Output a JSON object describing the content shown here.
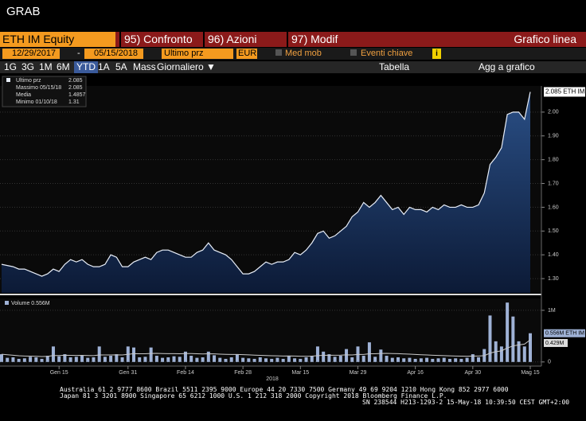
{
  "window_title": "GRAB",
  "header": {
    "security": "ETH IM Equity",
    "menus": [
      "95) Confronto",
      "96) Azioni",
      "97) Modif"
    ],
    "view": "Grafico linea"
  },
  "controls": {
    "start_date": "12/29/2017",
    "separator": "-",
    "end_date": "05/15/2018",
    "field": "Ultimo prz",
    "currency": "EUR",
    "moving_avg": "Med mob",
    "events": "Eventi chiave",
    "info": "i"
  },
  "periods": [
    "1G",
    "3G",
    "1M",
    "6M",
    "YTD",
    "1A",
    "5A",
    "Mass",
    "Giornaliero ▼"
  ],
  "tools": {
    "table": "Tabella",
    "add": "Agg a grafico"
  },
  "stats": [
    {
      "label": "Ultimo prz",
      "value": "2.085"
    },
    {
      "label": "Massimo 05/15/18",
      "value": "2.085"
    },
    {
      "label": "Media",
      "value": "1.4857"
    },
    {
      "label": "Minimo 01/10/18",
      "value": "1.31"
    }
  ],
  "chart_data": [
    {
      "type": "area",
      "categories": [
        null,
        null,
        null,
        null,
        null,
        null,
        null,
        null,
        null,
        null,
        "Gen 15",
        null,
        null,
        null,
        null,
        null,
        null,
        null,
        null,
        null,
        null,
        null,
        "Gen 31",
        null,
        null,
        null,
        null,
        null,
        null,
        null,
        null,
        null,
        "Feb 14",
        null,
        null,
        null,
        null,
        null,
        null,
        null,
        null,
        null,
        "Feb 28",
        null,
        null,
        null,
        null,
        null,
        null,
        null,
        null,
        null,
        "Mar 15",
        null,
        null,
        null,
        null,
        null,
        null,
        null,
        null,
        null,
        "Mar 29",
        null,
        null,
        null,
        null,
        null,
        null,
        null,
        null,
        null,
        "Apr 16",
        null,
        null,
        null,
        null,
        null,
        null,
        null,
        null,
        null,
        "Apr 30",
        null,
        null,
        null,
        null,
        null,
        null,
        null,
        null,
        null,
        "Mag 15"
      ],
      "series": [
        {
          "name": "Ultimo prz",
          "color": "#e8eef8",
          "values": [
            1.36,
            1.355,
            1.35,
            1.34,
            1.34,
            1.33,
            1.32,
            1.31,
            1.32,
            1.34,
            1.33,
            1.36,
            1.38,
            1.37,
            1.38,
            1.36,
            1.35,
            1.35,
            1.36,
            1.4,
            1.39,
            1.35,
            1.35,
            1.37,
            1.38,
            1.39,
            1.38,
            1.41,
            1.42,
            1.42,
            1.41,
            1.4,
            1.39,
            1.39,
            1.41,
            1.42,
            1.45,
            1.42,
            1.41,
            1.4,
            1.38,
            1.35,
            1.32,
            1.32,
            1.33,
            1.35,
            1.37,
            1.36,
            1.37,
            1.37,
            1.38,
            1.41,
            1.4,
            1.42,
            1.45,
            1.49,
            1.5,
            1.47,
            1.48,
            1.5,
            1.52,
            1.56,
            1.58,
            1.62,
            1.6,
            1.62,
            1.65,
            1.62,
            1.59,
            1.6,
            1.57,
            1.6,
            1.59,
            1.59,
            1.58,
            1.6,
            1.59,
            1.61,
            1.6,
            1.6,
            1.61,
            1.6,
            1.6,
            1.61,
            1.66,
            1.78,
            1.81,
            1.85,
            1.99,
            2.0,
            2.0,
            1.97,
            2.085
          ]
        }
      ],
      "last_tag": "2.085 ETH IM",
      "year_label": "2018",
      "ylim": [
        1.24,
        2.11
      ],
      "yticks": [
        {
          "value": 1.3,
          "label": "1.30"
        },
        {
          "value": 1.4,
          "label": "1.40"
        },
        {
          "value": 1.5,
          "label": "1.50"
        },
        {
          "value": 1.6,
          "label": "1.60"
        },
        {
          "value": 1.7,
          "label": "1.70"
        },
        {
          "value": 1.8,
          "label": "1.80"
        },
        {
          "value": 1.9,
          "label": "1.90"
        },
        {
          "value": 2.0,
          "label": "2.00"
        }
      ],
      "grid": true
    },
    {
      "type": "bar",
      "legend": "Volume 0.556M",
      "series": [
        {
          "name": "Volume",
          "color": "#9fb2d6",
          "values": [
            150000,
            80000,
            90000,
            60000,
            70000,
            100000,
            90000,
            60000,
            120000,
            300000,
            110000,
            150000,
            90000,
            100000,
            120000,
            80000,
            90000,
            300000,
            100000,
            120000,
            150000,
            90000,
            300000,
            280000,
            90000,
            100000,
            280000,
            120000,
            80000,
            90000,
            110000,
            100000,
            200000,
            120000,
            80000,
            90000,
            200000,
            130000,
            80000,
            60000,
            90000,
            150000,
            80000,
            70000,
            60000,
            90000,
            70000,
            60000,
            80000,
            60000,
            120000,
            70000,
            60000,
            90000,
            120000,
            300000,
            200000,
            150000,
            100000,
            120000,
            250000,
            90000,
            300000,
            120000,
            380000,
            100000,
            240000,
            120000,
            80000,
            90000,
            70000,
            80000,
            60000,
            70000,
            80000,
            60000,
            70000,
            80000,
            60000,
            70000,
            60000,
            80000,
            150000,
            90000,
            250000,
            900000,
            400000,
            300000,
            1150000,
            880000,
            400000,
            300000,
            556000
          ]
        },
        {
          "color": "#c8c8c8",
          "line": true,
          "values": [
            150000,
            140000,
            130000,
            120000,
            115000,
            112000,
            110000,
            105000,
            108000,
            125000,
            125000,
            130000,
            128000,
            127000,
            128000,
            125000,
            122000,
            135000,
            135000,
            135000,
            138000,
            136000,
            148000,
            160000,
            158000,
            158000,
            165000,
            166000,
            162000,
            160000,
            160000,
            158000,
            162000,
            162000,
            158000,
            155000,
            158000,
            157000,
            152000,
            148000,
            145000,
            146000,
            142000,
            138000,
            132000,
            128000,
            124000,
            120000,
            118000,
            115000,
            116000,
            114000,
            110000,
            110000,
            112000,
            122000,
            128000,
            130000,
            130000,
            132000,
            138000,
            136000,
            145000,
            146000,
            158000,
            158000,
            165000,
            166000,
            162000,
            160000,
            155000,
            152000,
            146000,
            140000,
            135000,
            130000,
            126000,
            122000,
            118000,
            115000,
            112000,
            110000,
            115000,
            115000,
            122000,
            170000,
            200000,
            215000,
            270000,
            310000,
            330000,
            345000,
            429000
          ]
        }
      ],
      "tags": [
        "0.556M ETH IM",
        "0.429M"
      ],
      "ylim": [
        -80000,
        1230000
      ],
      "yticks": [
        0,
        {
          "value": 1000000,
          "label": "1M"
        }
      ],
      "grid": true
    }
  ],
  "footer": [
    "Australia 61 2 9777 8600 Brazil 5511 2395 9000 Europe 44 20 7330 7500 Germany 49 69 9204 1210 Hong Kong 852 2977 6000",
    "Japan 81 3 3201 8900          Singapore 65 6212 1000          U.S. 1 212 318 2000                    Copyright 2018 Bloomberg Finance L.P.",
    "SN 238544 H213-1293-2 15-May-18 10:39:50 CEST GMT+2:00"
  ]
}
